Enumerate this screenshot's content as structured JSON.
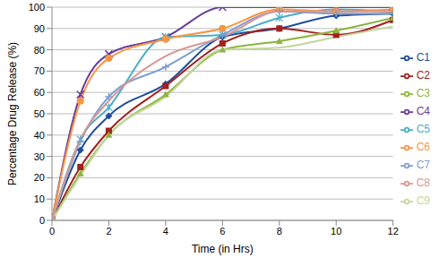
{
  "chart_data": {
    "type": "line",
    "x_label": "Time (in Hrs)",
    "y_label": "Percentage Drug Release (%)",
    "x": [
      0,
      1,
      2,
      4,
      6,
      8,
      10,
      12
    ],
    "xlim": [
      0,
      12
    ],
    "xticks": [
      0,
      2,
      4,
      6,
      8,
      10,
      12
    ],
    "ylim": [
      0,
      100
    ],
    "yticks": [
      0,
      10,
      20,
      30,
      40,
      50,
      60,
      70,
      80,
      90,
      100
    ],
    "grid": true,
    "legend": "right",
    "series": [
      {
        "name": "C1",
        "color": "#1F4E9A",
        "marker": "diamond",
        "values": [
          0,
          33,
          49,
          64,
          86,
          90,
          96,
          97
        ]
      },
      {
        "name": "C2",
        "color": "#A3201F",
        "marker": "square",
        "values": [
          0,
          25,
          42,
          63,
          83,
          90,
          87,
          94
        ]
      },
      {
        "name": "C3",
        "color": "#8DB53D",
        "marker": "triangle",
        "values": [
          0,
          22,
          40,
          59,
          80,
          84,
          89,
          95
        ]
      },
      {
        "name": "C4",
        "color": "#6A3D9A",
        "marker": "x",
        "values": [
          0,
          59,
          78,
          86,
          100,
          100,
          100,
          100
        ]
      },
      {
        "name": "C5",
        "color": "#4BACC6",
        "marker": "asterisk",
        "values": [
          0,
          38,
          53,
          86,
          87,
          95,
          99,
          98
        ]
      },
      {
        "name": "C6",
        "color": "#F79646",
        "marker": "circle",
        "values": [
          0,
          56,
          76,
          85,
          90,
          99,
          98,
          99
        ]
      },
      {
        "name": "C7",
        "color": "#7F9FCF",
        "marker": "plus",
        "values": [
          0,
          37,
          58,
          72,
          87,
          98,
          97,
          97
        ]
      },
      {
        "name": "C8",
        "color": "#D99694",
        "marker": "none",
        "values": [
          0,
          38,
          56,
          77,
          86,
          98,
          98,
          98
        ]
      },
      {
        "name": "C9",
        "color": "#C3D69B",
        "marker": "none",
        "values": [
          0,
          21,
          40,
          58,
          80,
          81,
          86,
          91
        ]
      }
    ]
  }
}
